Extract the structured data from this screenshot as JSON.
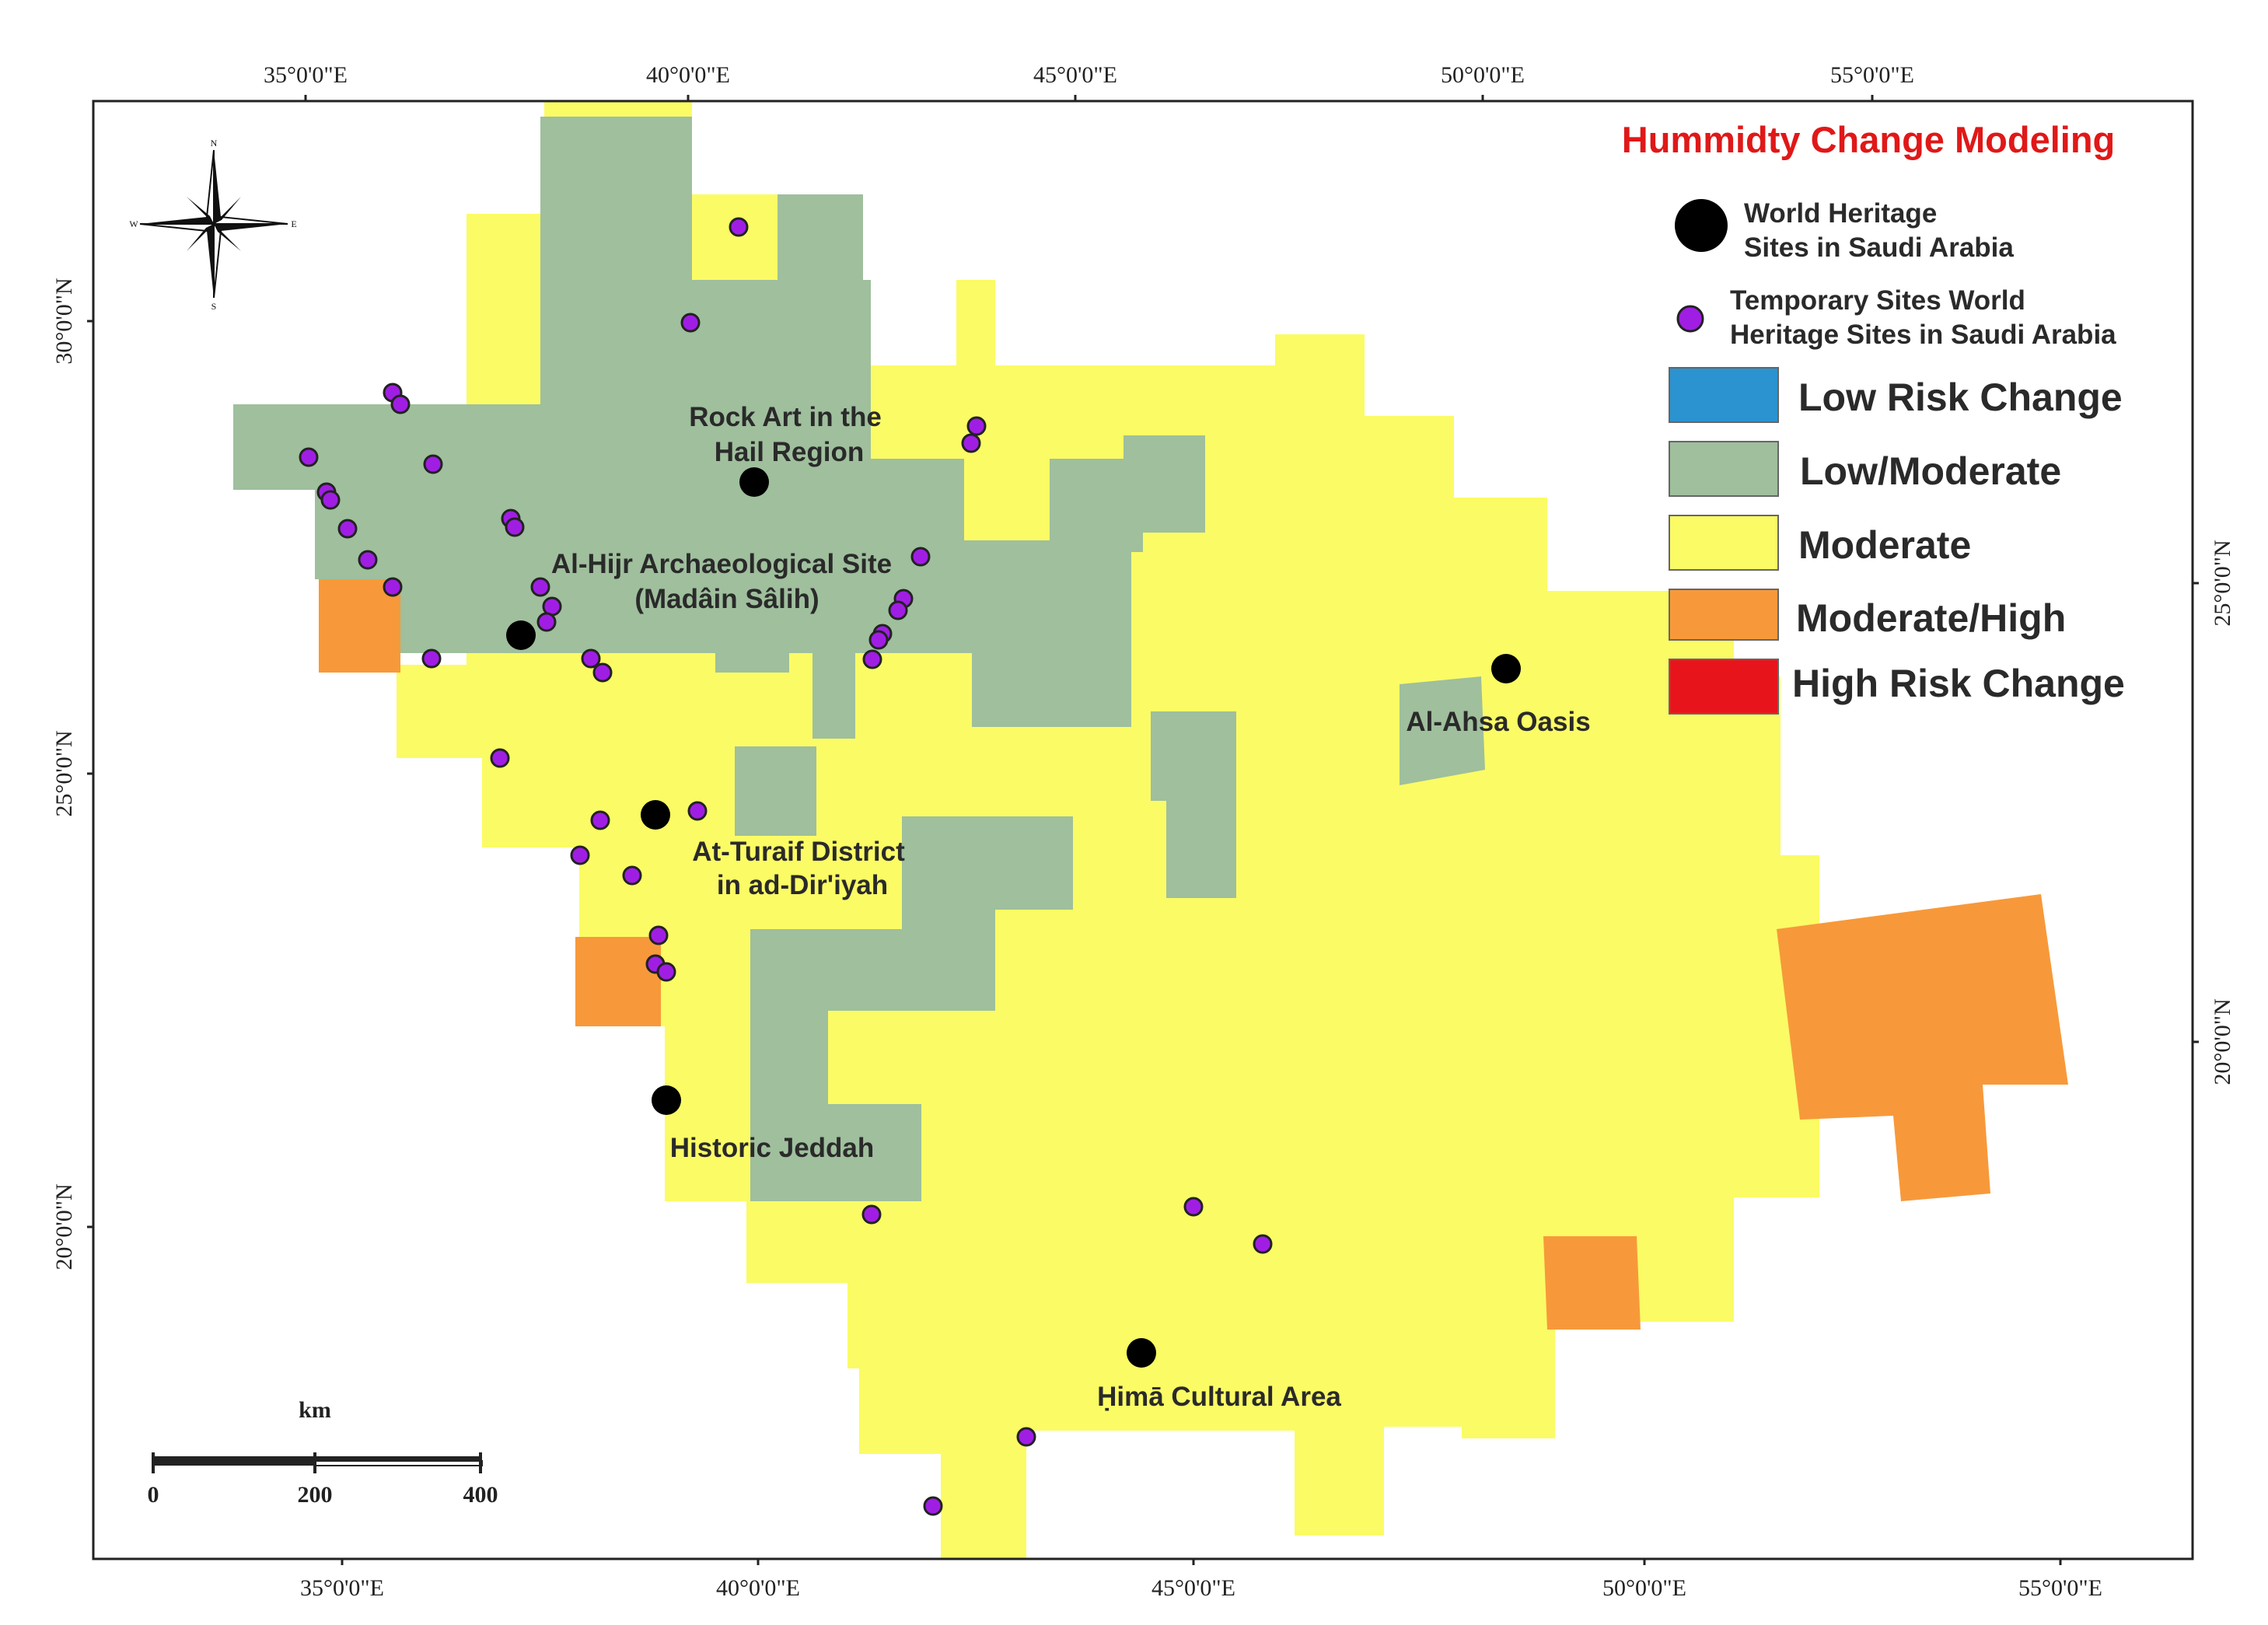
{
  "colors": {
    "low_risk": "#2a93d0",
    "low_moderate": "#9fbf9d",
    "moderate": "#fbfb65",
    "moderate_high": "#f7993a",
    "high_risk": "#e8141c",
    "title": "#e01818",
    "world_heritage_dot": "#000000",
    "temporary_dot": "#a01ee3"
  },
  "axes": {
    "top_ticks": [
      "35°0'0\"E",
      "40°0'0\"E",
      "45°0'0\"E",
      "50°0'0\"E",
      "55°0'0\"E"
    ],
    "bottom_ticks": [
      "35°0'0\"E",
      "40°0'0\"E",
      "45°0'0\"E",
      "50°0'0\"E",
      "55°0'0\"E"
    ],
    "left_ticks": [
      "30°0'0\"N",
      "25°0'0\"N",
      "20°0'0\"N"
    ],
    "right_ticks": [
      "25°0'0\"N",
      "20°0'0\"N"
    ]
  },
  "legend": {
    "title": "Hummidty Change  Modeling",
    "world_heritage_line1": "World Heritage",
    "world_heritage_line2": " Sites in Saudi Arabia",
    "temporary_line1": "Temporary Sites World",
    "temporary_line2": "Heritage Sites in Saudi Arabia",
    "classes": [
      {
        "label": "Low Risk Change",
        "color_key": "low_risk"
      },
      {
        "label": "Low/Moderate",
        "color_key": "low_moderate"
      },
      {
        "label": "Moderate",
        "color_key": "moderate"
      },
      {
        "label": "Moderate/High",
        "color_key": "moderate_high"
      },
      {
        "label": "High Risk Change",
        "color_key": "high_risk"
      }
    ]
  },
  "sites": {
    "hail_line1": "Rock Art in the",
    "hail_line2": "Hail Region",
    "hijr_line1": "Al-Hijr Archaeological Site",
    "hijr_line2": "(Madâin Sâlih)",
    "ahsa": "Al-Ahsa Oasis",
    "turaif_line1": "At-Turaif  District",
    "turaif_line2": "in ad-Dir'iyah",
    "jeddah": "Historic Jeddah",
    "hima": "Ḥimā Cultural Area"
  },
  "compass": {
    "n": "N",
    "s": "S",
    "e": "E",
    "w": "W"
  },
  "scale_bar": {
    "unit": "km",
    "labels": [
      "0",
      "200",
      "400"
    ]
  }
}
